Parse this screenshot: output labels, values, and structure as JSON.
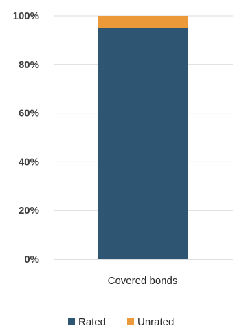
{
  "chart_data": {
    "type": "bar",
    "stacked": true,
    "categories": [
      "Covered bonds"
    ],
    "series": [
      {
        "name": "Rated",
        "values": [
          95
        ],
        "color": "#2e5572"
      },
      {
        "name": "Unrated",
        "values": [
          5
        ],
        "color": "#ec9a39"
      }
    ],
    "y_ticks": [
      "0%",
      "20%",
      "40%",
      "60%",
      "80%",
      "100%"
    ],
    "ylim": [
      0,
      100
    ],
    "grid": true,
    "legend_position": "bottom",
    "title": "",
    "xlabel": "",
    "ylabel": ""
  }
}
